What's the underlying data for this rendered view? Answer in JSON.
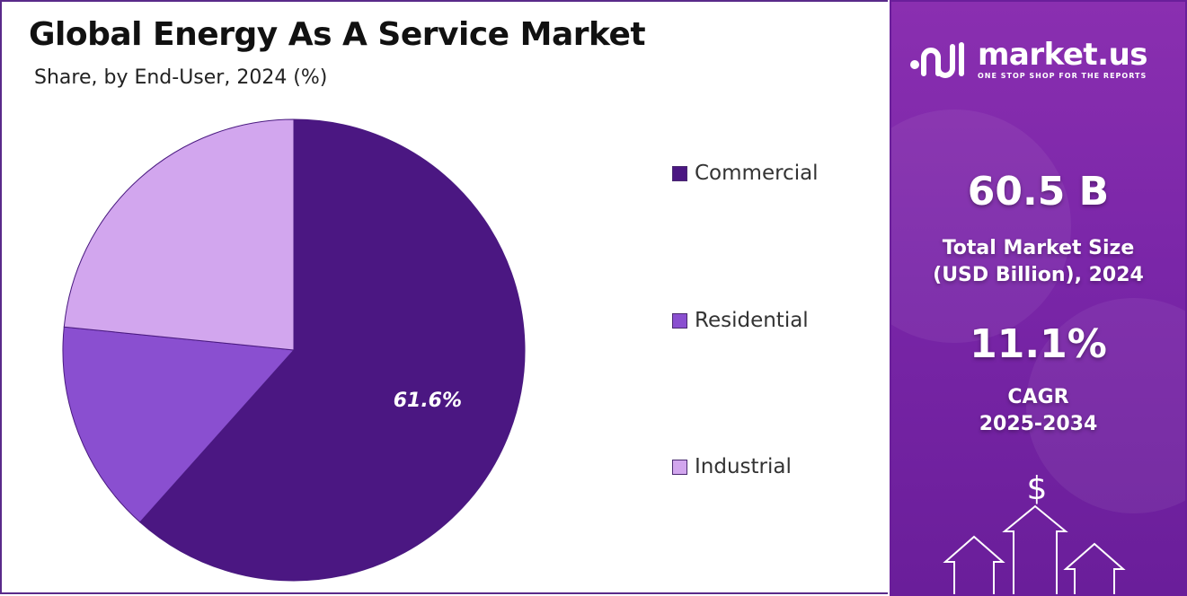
{
  "header": {
    "title": "Global Energy As A Service Market",
    "subtitle": "Share, by End-User, 2024 (%)"
  },
  "chart_data": {
    "type": "pie",
    "title": "Global Energy As A Service Market",
    "subtitle": "Share, by End-User, 2024 (%)",
    "categories": [
      "Commercial",
      "Residential",
      "Industrial"
    ],
    "values": [
      61.6,
      15.0,
      23.4
    ],
    "data_labels": [
      "61.6%",
      "",
      ""
    ],
    "colors": [
      "#4b1782",
      "#8a4fd0",
      "#d2a6ee"
    ],
    "legend_position": "right",
    "start_angle_deg": 0,
    "direction": "clockwise"
  },
  "legend": {
    "items": [
      {
        "label": "Commercial",
        "color": "#4b1782"
      },
      {
        "label": "Residential",
        "color": "#8a4fd0"
      },
      {
        "label": "Industrial",
        "color": "#d2a6ee"
      }
    ]
  },
  "sidebar": {
    "brand_name": "market.us",
    "brand_tagline": "ONE STOP SHOP FOR THE REPORTS",
    "market_size_value": "60.5 B",
    "market_size_label_line1": "Total Market Size",
    "market_size_label_line2": "(USD Billion), 2024",
    "cagr_value": "11.1%",
    "cagr_label_line1": "CAGR",
    "cagr_label_line2": "2025-2034",
    "currency_symbol": "$",
    "accent_color": "#7a26a8"
  }
}
